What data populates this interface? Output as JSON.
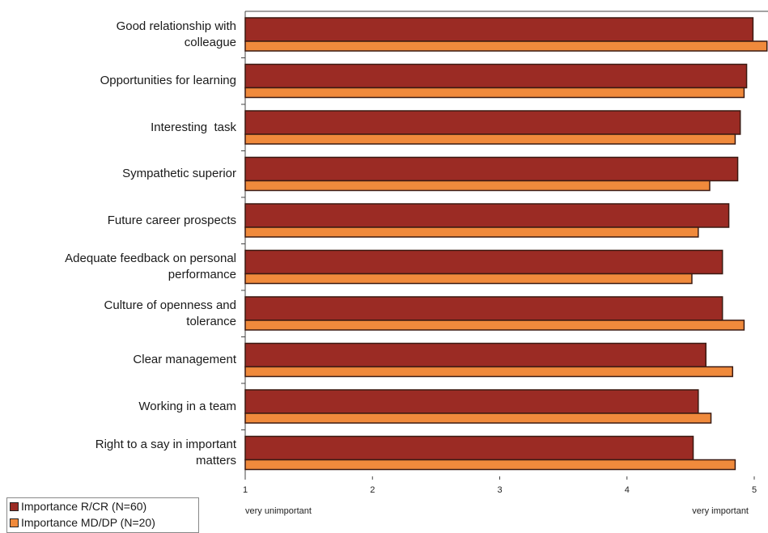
{
  "chart_data": {
    "type": "bar",
    "orientation": "horizontal",
    "categories": [
      "Good relationship with colleague",
      "Opportunities for learning",
      "Interesting  task",
      "Sympathetic superior",
      "Future career prospects",
      "Adequate feedback on personal performance",
      "Culture of openness and tolerance",
      "Clear management",
      "Working in a team",
      "Right to a say in important matters"
    ],
    "series": [
      {
        "name": "Importance R/CR (N=60)",
        "color": "#9b2b24",
        "values": [
          4.99,
          4.94,
          4.89,
          4.87,
          4.8,
          4.75,
          4.75,
          4.62,
          4.56,
          4.52
        ]
      },
      {
        "name": "Importance MD/DP (N=20)",
        "color": "#f08a3c",
        "values": [
          5.1,
          4.92,
          4.85,
          4.65,
          4.56,
          4.51,
          4.92,
          4.83,
          4.66,
          4.85
        ]
      }
    ],
    "xlim": [
      1,
      5
    ],
    "xticks": [
      1,
      2,
      3,
      4,
      5
    ],
    "x_low_label": "very unimportant",
    "x_high_label": "very important",
    "legend": "bottom-left"
  }
}
